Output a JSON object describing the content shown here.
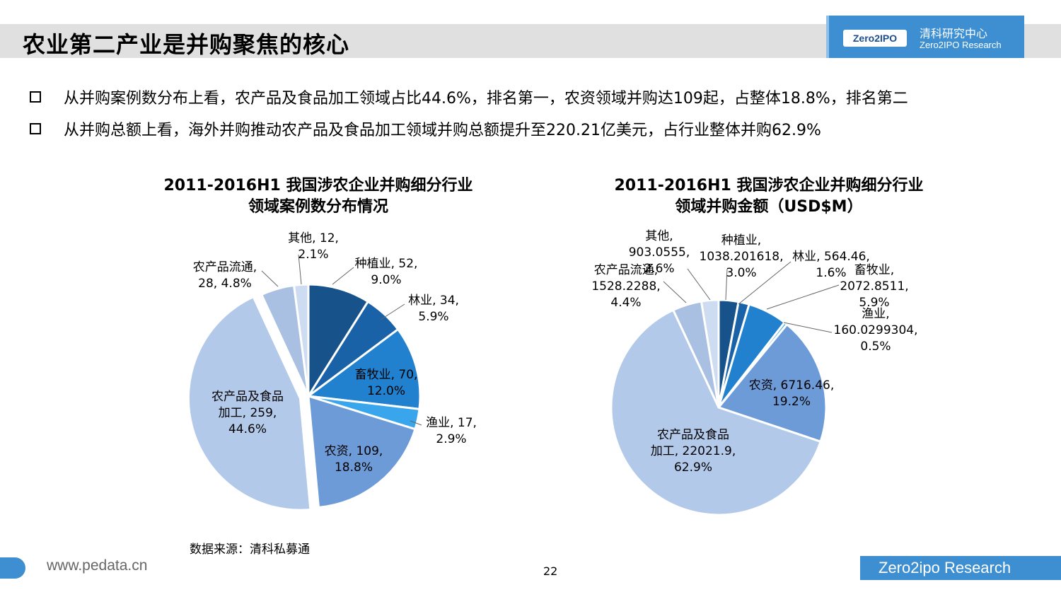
{
  "header": {
    "title": "农业第二产业是并购聚焦的核心",
    "logo_mark": "Zero2IPO",
    "logo_cn": "清科研究中心",
    "logo_en": "Zero2IPO Research"
  },
  "bullets": [
    "从并购案例数分布上看，农产品及食品加工领域占比44.6%，排名第一，农资领域并购达109起，占整体18.8%，排名第二",
    "从并购总额上看，海外并购推动农产品及食品加工领域并购总额提升至220.21亿美元，占行业整体并购62.9%"
  ],
  "chart_data": [
    {
      "type": "pie",
      "title": "2011-2016H1 我国涉农企业并购细分行业",
      "subtitle": "领域案例数分布情况",
      "slices": [
        {
          "name": "种植业",
          "value": 52,
          "percent": 9.0,
          "color": "#17528a",
          "label_lines": [
            "种植业, 52,",
            "9.0%"
          ]
        },
        {
          "name": "林业",
          "value": 34,
          "percent": 5.9,
          "color": "#1a62a8",
          "label_lines": [
            "林业, 34,",
            "5.9%"
          ]
        },
        {
          "name": "畜牧业",
          "value": 70,
          "percent": 12.0,
          "color": "#2181cf",
          "label_lines": [
            "畜牧业, 70,",
            "12.0%"
          ]
        },
        {
          "name": "渔业",
          "value": 17,
          "percent": 2.9,
          "color": "#38a5ec",
          "label_lines": [
            "渔业, 17,",
            "2.9%"
          ]
        },
        {
          "name": "农资",
          "value": 109,
          "percent": 18.8,
          "color": "#6d9bd8",
          "label_lines": [
            "农资, 109,",
            "18.8%"
          ]
        },
        {
          "name": "农产品及食品加工",
          "value": 259,
          "percent": 44.6,
          "color": "#b3c9ea",
          "label_lines": [
            "农产品及食品",
            "加工, 259,",
            "44.6%"
          ]
        },
        {
          "name": "农产品流通",
          "value": 28,
          "percent": 4.8,
          "color": "#a9c0e3",
          "label_lines": [
            "农产品流通,",
            "28, 4.8%"
          ]
        },
        {
          "name": "其他",
          "value": 12,
          "percent": 2.1,
          "color": "#cddcf1",
          "label_lines": [
            "其他, 12,",
            "2.1%"
          ]
        }
      ]
    },
    {
      "type": "pie",
      "title": "2011-2016H1 我国涉农企业并购细分行业",
      "subtitle": "领域并购金额（USD$M）",
      "slices": [
        {
          "name": "种植业",
          "value": 1038.201618,
          "percent": 3.0,
          "color": "#17528a",
          "label_lines": [
            "种植业,",
            "1038.201618,",
            "3.0%"
          ]
        },
        {
          "name": "林业",
          "value": 564.46,
          "percent": 1.6,
          "color": "#1a62a8",
          "label_lines": [
            "林业, 564.46,",
            "1.6%"
          ]
        },
        {
          "name": "畜牧业",
          "value": 2072.8511,
          "percent": 5.9,
          "color": "#2181cf",
          "label_lines": [
            "畜牧业,",
            "2072.8511,",
            "5.9%"
          ]
        },
        {
          "name": "渔业",
          "value": 160.0299304,
          "percent": 0.5,
          "color": "#38a5ec",
          "label_lines": [
            "渔业,",
            "160.0299304,",
            "0.5%"
          ]
        },
        {
          "name": "农资",
          "value": 6716.46,
          "percent": 19.2,
          "color": "#6d9bd8",
          "label_lines": [
            "农资, 6716.46,",
            "19.2%"
          ]
        },
        {
          "name": "农产品及食品加工",
          "value": 22021.9,
          "percent": 62.9,
          "color": "#b3c9ea",
          "label_lines": [
            "农产品及食品",
            "加工, 22021.9,",
            "62.9%"
          ]
        },
        {
          "name": "农产品流通",
          "value": 1528.2288,
          "percent": 4.4,
          "color": "#a9c0e3",
          "label_lines": [
            "农产品流通,",
            "1528.2288,",
            "4.4%"
          ]
        },
        {
          "name": "其他",
          "value": 903.0555,
          "percent": 2.6,
          "color": "#cddcf1",
          "label_lines": [
            "其他,",
            "903.0555,",
            "2.6%"
          ]
        }
      ]
    }
  ],
  "source": "数据来源：清科私募通",
  "footer": {
    "url": "www.pedata.cn",
    "page": "22",
    "brand": "Zero2ipo Research"
  }
}
